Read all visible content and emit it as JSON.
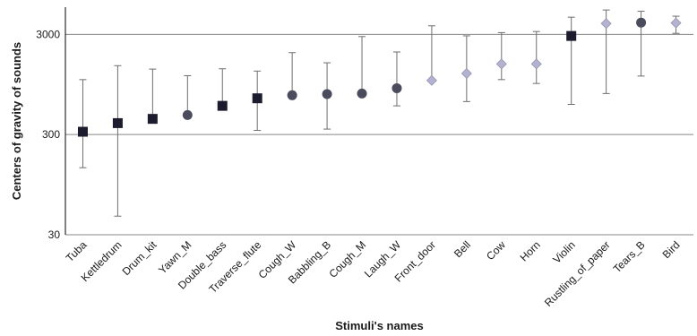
{
  "chart_data": {
    "type": "scatter",
    "title": "",
    "xlabel": "Stimuli's names",
    "ylabel": "Centers of gravity of sounds",
    "yscale": "log",
    "ylim": [
      30,
      5600
    ],
    "yticks": [
      30,
      300,
      3000
    ],
    "grid": "horizontal at major ticks",
    "legend": "none",
    "categories": [
      "Tuba",
      "Kettledrum",
      "Drum_kit",
      "Yawn_M",
      "Double_bass",
      "Traverse_flute",
      "Cough_W",
      "Babbling_B",
      "Cough_M",
      "Laugh_W",
      "Front_door",
      "Bell",
      "Cow",
      "Horn",
      "Violin",
      "Rustling_of_paper",
      "Tears_B",
      "Bird"
    ],
    "values": [
      320,
      390,
      430,
      470,
      580,
      690,
      740,
      760,
      770,
      870,
      1040,
      1220,
      1520,
      1520,
      2890,
      3850,
      3930,
      3900
    ],
    "err_low": [
      140,
      46,
      null,
      null,
      null,
      330,
      null,
      340,
      null,
      580,
      null,
      640,
      1060,
      970,
      600,
      770,
      1150,
      3070
    ],
    "err_high": [
      1060,
      1460,
      1350,
      1160,
      1360,
      1290,
      1970,
      1560,
      2850,
      2000,
      3650,
      2900,
      3120,
      3200,
      4450,
      5250,
      5100,
      4550
    ],
    "markers": [
      "square",
      "square",
      "square",
      "circle",
      "square",
      "square",
      "circle",
      "circle",
      "circle",
      "circle",
      "diamond",
      "diamond",
      "diamond",
      "diamond",
      "square",
      "diamond",
      "circle",
      "diamond"
    ],
    "colors": {
      "square": "#1c1c2e",
      "circle": "#4b4b5e",
      "diamond": "#b3b3d1",
      "diamond_stroke": "#8d8dab",
      "error_bar": "#6e6e6e",
      "grid": "#888888",
      "axis": "#000000"
    }
  }
}
